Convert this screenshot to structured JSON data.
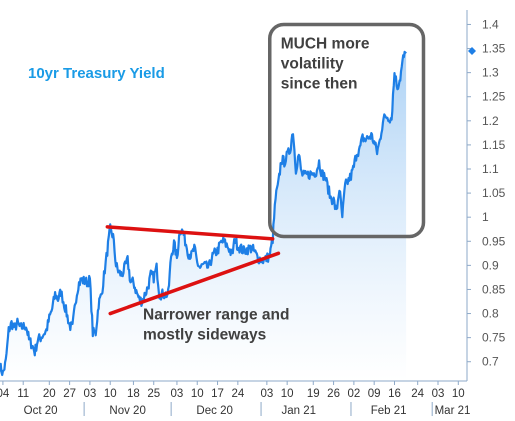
{
  "chart_data": {
    "type": "line",
    "title": "10yr Treasury Yield",
    "ylim": [
      0.66,
      1.43
    ],
    "yticks": [
      0.7,
      0.75,
      0.8,
      0.85,
      0.9,
      0.95,
      1.0,
      1.05,
      1.1,
      1.15,
      1.2,
      1.25,
      1.3,
      1.35,
      1.4
    ],
    "ytick_labels": [
      "0.7",
      "0.75",
      "0.8",
      "0.85",
      "0.9",
      "0.95",
      "1",
      "1.05",
      "1.1",
      "1.15",
      "1.2",
      "1.25",
      "1.3",
      "1.35",
      "1.4"
    ],
    "xlim": [
      "2020-10-03",
      "2021-03-13"
    ],
    "x_day_ticks": [
      {
        "date": "2020-10-04",
        "label": "04"
      },
      {
        "date": "2020-10-11",
        "label": "11"
      },
      {
        "date": "2020-10-20",
        "label": "20"
      },
      {
        "date": "2020-10-27",
        "label": "27"
      },
      {
        "date": "2020-11-03",
        "label": "03"
      },
      {
        "date": "2020-11-10",
        "label": "10"
      },
      {
        "date": "2020-11-18",
        "label": "18"
      },
      {
        "date": "2020-11-25",
        "label": "25"
      },
      {
        "date": "2020-12-03",
        "label": "03"
      },
      {
        "date": "2020-12-10",
        "label": "10"
      },
      {
        "date": "2020-12-17",
        "label": "17"
      },
      {
        "date": "2020-12-24",
        "label": "24"
      },
      {
        "date": "2021-01-03",
        "label": "03"
      },
      {
        "date": "2021-01-10",
        "label": "10"
      },
      {
        "date": "2021-01-19",
        "label": "19"
      },
      {
        "date": "2021-01-26",
        "label": "26"
      },
      {
        "date": "2021-02-02",
        "label": "02"
      },
      {
        "date": "2021-02-09",
        "label": "09"
      },
      {
        "date": "2021-02-16",
        "label": "16"
      },
      {
        "date": "2021-02-24",
        "label": "24"
      },
      {
        "date": "2021-03-03",
        "label": "03"
      },
      {
        "date": "2021-03-10",
        "label": "10"
      }
    ],
    "x_month_ticks": [
      {
        "label": "Oct 20",
        "mid": "2020-10-17",
        "sep": "2020-11-01"
      },
      {
        "label": "Nov 20",
        "mid": "2020-11-16",
        "sep": "2020-12-01"
      },
      {
        "label": "Dec 20",
        "mid": "2020-12-16",
        "sep": "2021-01-01"
      },
      {
        "label": "Jan 21",
        "mid": "2021-01-14",
        "sep": "2021-02-01"
      },
      {
        "label": "Feb 21",
        "mid": "2021-02-14",
        "sep": "2021-03-01"
      },
      {
        "label": "Mar 21",
        "mid": "2021-03-08",
        "sep": null
      }
    ],
    "series": [
      {
        "name": "",
        "color": "#1e7fe6",
        "points": [
          [
            "2020-10-03",
            0.69
          ],
          [
            "2020-10-04",
            0.675
          ],
          [
            "2020-10-05",
            0.7
          ],
          [
            "2020-10-06",
            0.765
          ],
          [
            "2020-10-07",
            0.78
          ],
          [
            "2020-10-08",
            0.77
          ],
          [
            "2020-10-09",
            0.78
          ],
          [
            "2020-10-10",
            0.77
          ],
          [
            "2020-10-12",
            0.775
          ],
          [
            "2020-10-13",
            0.745
          ],
          [
            "2020-10-14",
            0.735
          ],
          [
            "2020-10-15",
            0.72
          ],
          [
            "2020-10-16",
            0.745
          ],
          [
            "2020-10-17",
            0.75
          ],
          [
            "2020-10-19",
            0.765
          ],
          [
            "2020-10-20",
            0.79
          ],
          [
            "2020-10-21",
            0.81
          ],
          [
            "2020-10-22",
            0.84
          ],
          [
            "2020-10-23",
            0.83
          ],
          [
            "2020-10-24",
            0.845
          ],
          [
            "2020-10-26",
            0.8
          ],
          [
            "2020-10-27",
            0.775
          ],
          [
            "2020-10-28",
            0.77
          ],
          [
            "2020-10-29",
            0.825
          ],
          [
            "2020-10-30",
            0.86
          ],
          [
            "2020-10-31",
            0.87
          ],
          [
            "2020-11-02",
            0.865
          ],
          [
            "2020-11-03",
            0.87
          ],
          [
            "2020-11-04",
            0.76
          ],
          [
            "2020-11-05",
            0.76
          ],
          [
            "2020-11-06",
            0.82
          ],
          [
            "2020-11-07",
            0.84
          ],
          [
            "2020-11-09",
            0.93
          ],
          [
            "2020-11-10",
            0.975
          ],
          [
            "2020-11-11",
            0.96
          ],
          [
            "2020-11-12",
            0.9
          ],
          [
            "2020-11-13",
            0.885
          ],
          [
            "2020-11-14",
            0.88
          ],
          [
            "2020-11-16",
            0.91
          ],
          [
            "2020-11-17",
            0.865
          ],
          [
            "2020-11-18",
            0.865
          ],
          [
            "2020-11-19",
            0.845
          ],
          [
            "2020-11-20",
            0.83
          ],
          [
            "2020-11-21",
            0.825
          ],
          [
            "2020-11-23",
            0.855
          ],
          [
            "2020-11-24",
            0.88
          ],
          [
            "2020-11-25",
            0.875
          ],
          [
            "2020-11-26",
            0.895
          ],
          [
            "2020-11-27",
            0.84
          ],
          [
            "2020-11-28",
            0.84
          ],
          [
            "2020-11-30",
            0.84
          ],
          [
            "2020-12-01",
            0.92
          ],
          [
            "2020-12-02",
            0.945
          ],
          [
            "2020-12-03",
            0.915
          ],
          [
            "2020-12-04",
            0.975
          ],
          [
            "2020-12-05",
            0.97
          ],
          [
            "2020-12-07",
            0.925
          ],
          [
            "2020-12-08",
            0.92
          ],
          [
            "2020-12-09",
            0.935
          ],
          [
            "2020-12-10",
            0.905
          ],
          [
            "2020-12-11",
            0.895
          ],
          [
            "2020-12-12",
            0.9
          ],
          [
            "2020-12-14",
            0.895
          ],
          [
            "2020-12-15",
            0.915
          ],
          [
            "2020-12-16",
            0.925
          ],
          [
            "2020-12-17",
            0.93
          ],
          [
            "2020-12-18",
            0.945
          ],
          [
            "2020-12-19",
            0.95
          ],
          [
            "2020-12-21",
            0.935
          ],
          [
            "2020-12-22",
            0.92
          ],
          [
            "2020-12-23",
            0.955
          ],
          [
            "2020-12-24",
            0.94
          ],
          [
            "2020-12-26",
            0.93
          ],
          [
            "2020-12-28",
            0.935
          ],
          [
            "2020-12-29",
            0.935
          ],
          [
            "2020-12-30",
            0.925
          ],
          [
            "2020-12-31",
            0.915
          ],
          [
            "2021-01-02",
            0.91
          ],
          [
            "2021-01-04",
            0.92
          ],
          [
            "2021-01-05",
            0.955
          ],
          [
            "2021-01-06",
            1.04
          ],
          [
            "2021-01-07",
            1.07
          ],
          [
            "2021-01-08",
            1.12
          ],
          [
            "2021-01-09",
            1.115
          ],
          [
            "2021-01-11",
            1.14
          ],
          [
            "2021-01-12",
            1.18
          ],
          [
            "2021-01-13",
            1.1
          ],
          [
            "2021-01-14",
            1.13
          ],
          [
            "2021-01-15",
            1.09
          ],
          [
            "2021-01-16",
            1.085
          ],
          [
            "2021-01-18",
            1.09
          ],
          [
            "2021-01-19",
            1.09
          ],
          [
            "2021-01-20",
            1.095
          ],
          [
            "2021-01-21",
            1.115
          ],
          [
            "2021-01-22",
            1.09
          ],
          [
            "2021-01-23",
            1.085
          ],
          [
            "2021-01-25",
            1.04
          ],
          [
            "2021-01-26",
            1.035
          ],
          [
            "2021-01-27",
            1.01
          ],
          [
            "2021-01-28",
            1.06
          ],
          [
            "2021-01-29",
            1.0
          ],
          [
            "2021-01-30",
            1.065
          ],
          [
            "2021-02-01",
            1.085
          ],
          [
            "2021-02-02",
            1.105
          ],
          [
            "2021-02-03",
            1.135
          ],
          [
            "2021-02-04",
            1.14
          ],
          [
            "2021-02-05",
            1.165
          ],
          [
            "2021-02-06",
            1.16
          ],
          [
            "2021-02-08",
            1.17
          ],
          [
            "2021-02-09",
            1.155
          ],
          [
            "2021-02-10",
            1.135
          ],
          [
            "2021-02-11",
            1.16
          ],
          [
            "2021-02-12",
            1.2
          ],
          [
            "2021-02-13",
            1.21
          ],
          [
            "2021-02-15",
            1.205
          ],
          [
            "2021-02-16",
            1.3
          ],
          [
            "2021-02-17",
            1.27
          ],
          [
            "2021-02-18",
            1.29
          ],
          [
            "2021-02-19",
            1.33
          ],
          [
            "2021-02-20",
            1.34
          ]
        ]
      }
    ],
    "last_value": 1.345,
    "annotations": [
      {
        "text": "MUCH more volatility since then",
        "lines": [
          "MUCH more",
          "volatility",
          "since then"
        ]
      },
      {
        "text": "Narrower range and mostly sideways",
        "lines": [
          "Narrower range and",
          "mostly sideways"
        ]
      }
    ],
    "trendlines": [
      {
        "color": "#dd1111",
        "from": [
          "2020-11-09",
          0.98
        ],
        "to": [
          "2021-01-05",
          0.955
        ]
      },
      {
        "color": "#dd1111",
        "from": [
          "2020-11-10",
          0.8
        ],
        "to": [
          "2021-01-07",
          0.925
        ]
      }
    ],
    "highlight_box": {
      "from": [
        "2021-01-04",
        1.4
      ],
      "to": [
        "2021-02-26",
        0.96
      ]
    },
    "grid": false,
    "colors": {
      "line": "#1e7fe6",
      "fill_top": "#a9d0f5",
      "fill_bottom": "#ffffff",
      "title": "#1a9be6",
      "trend": "#dd1111",
      "box": "#666666"
    }
  }
}
